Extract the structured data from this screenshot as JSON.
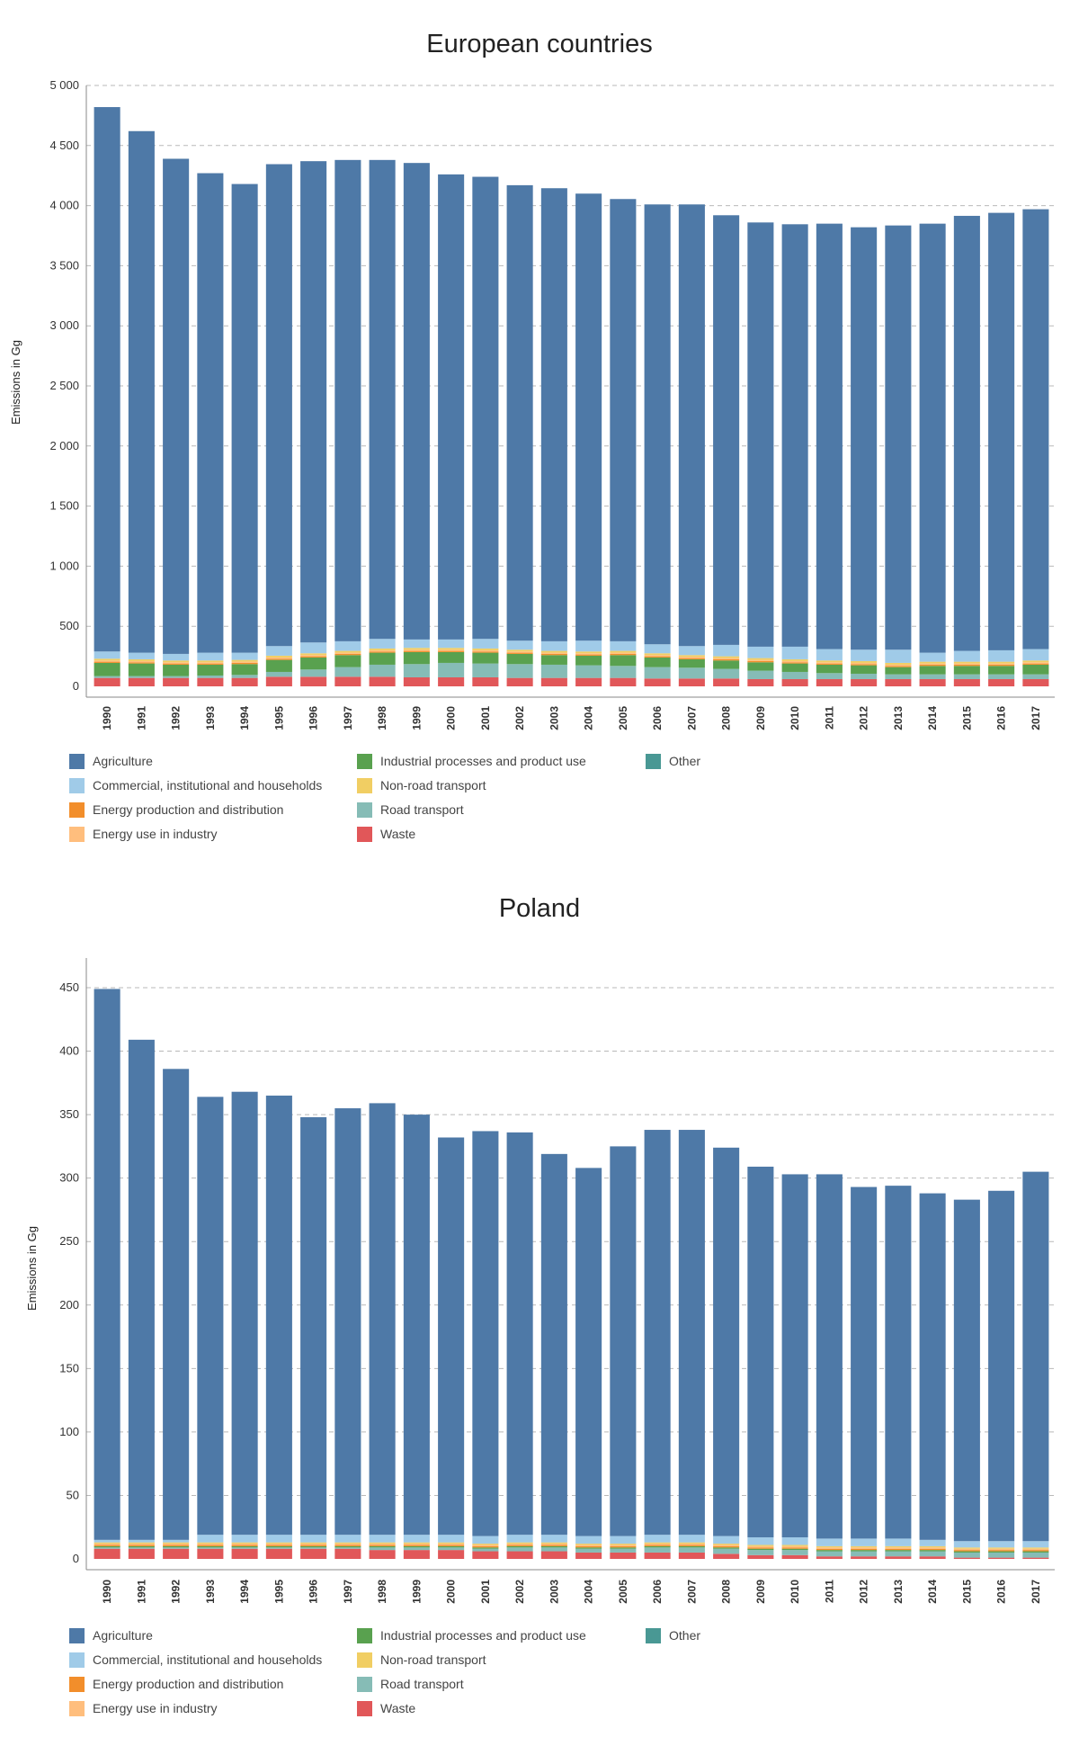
{
  "colors": {
    "Agriculture": "#4e79a7",
    "Commercial, institutional and households": "#a0cbe8",
    "Energy production and distribution": "#f28e2b",
    "Energy use in industry": "#ffbe7d",
    "Industrial processes and product use": "#59a14f",
    "Non-road transport": "#f1ce63",
    "Road transport": "#86bcb6",
    "Waste": "#e15759",
    "Other": "#499894"
  },
  "legend_items": [
    "Agriculture",
    "Commercial, institutional and households",
    "Energy production and distribution",
    "Energy use in industry",
    "Industrial processes and product use",
    "Non-road transport",
    "Road transport",
    "Waste",
    "Other"
  ],
  "chart_data": [
    {
      "type": "bar",
      "stacked": true,
      "title": "European countries",
      "ylabel": "Emissions in Gg",
      "xlabel": "",
      "ylim": [
        0,
        5000
      ],
      "yticks": [
        0,
        500,
        1000,
        1500,
        2000,
        2500,
        3000,
        3500,
        4000,
        4500,
        5000
      ],
      "ytick_labels": [
        "0",
        "500",
        "1 000",
        "1 500",
        "2 000",
        "2 500",
        "3 000",
        "3 500",
        "4 000",
        "4 500",
        "5 000"
      ],
      "grid": "horizontal dashed",
      "legend_position": "bottom",
      "categories": [
        "1990",
        "1991",
        "1992",
        "1993",
        "1994",
        "1995",
        "1996",
        "1997",
        "1998",
        "1999",
        "2000",
        "2001",
        "2002",
        "2003",
        "2004",
        "2005",
        "2006",
        "2007",
        "2008",
        "2009",
        "2010",
        "2011",
        "2012",
        "2013",
        "2014",
        "2015",
        "2016",
        "2017"
      ],
      "series": [
        {
          "name": "Waste",
          "values": [
            70,
            70,
            70,
            70,
            70,
            80,
            80,
            80,
            80,
            75,
            75,
            75,
            70,
            70,
            70,
            70,
            65,
            65,
            65,
            60,
            60,
            60,
            60,
            60,
            60,
            60,
            60,
            60
          ]
        },
        {
          "name": "Road transport",
          "values": [
            15,
            15,
            15,
            20,
            25,
            40,
            60,
            80,
            100,
            110,
            120,
            115,
            115,
            110,
            105,
            100,
            95,
            90,
            80,
            70,
            60,
            50,
            45,
            40,
            40,
            40,
            40,
            40
          ]
        },
        {
          "name": "Industrial processes and product use",
          "values": [
            110,
            105,
            95,
            90,
            90,
            100,
            100,
            100,
            100,
            100,
            90,
            90,
            85,
            80,
            80,
            90,
            80,
            70,
            70,
            70,
            70,
            70,
            70,
            60,
            70,
            70,
            70,
            80
          ]
        },
        {
          "name": "Energy production and distribution",
          "values": [
            10,
            10,
            10,
            10,
            10,
            10,
            10,
            10,
            10,
            10,
            10,
            10,
            10,
            10,
            10,
            10,
            10,
            10,
            10,
            10,
            10,
            10,
            10,
            10,
            10,
            10,
            10,
            10
          ]
        },
        {
          "name": "Energy use in industry",
          "values": [
            10,
            10,
            10,
            10,
            10,
            10,
            10,
            10,
            10,
            10,
            10,
            10,
            10,
            10,
            10,
            10,
            10,
            10,
            10,
            10,
            10,
            10,
            10,
            10,
            10,
            10,
            10,
            10
          ]
        },
        {
          "name": "Non-road transport",
          "values": [
            15,
            15,
            15,
            15,
            15,
            15,
            15,
            15,
            15,
            15,
            15,
            15,
            15,
            15,
            15,
            15,
            15,
            15,
            15,
            15,
            15,
            15,
            15,
            15,
            15,
            15,
            15,
            15
          ]
        },
        {
          "name": "Commercial, institutional and households",
          "values": [
            60,
            55,
            55,
            65,
            60,
            80,
            90,
            80,
            80,
            70,
            70,
            80,
            75,
            80,
            90,
            80,
            75,
            75,
            95,
            95,
            105,
            95,
            95,
            110,
            75,
            90,
            95,
            95
          ]
        },
        {
          "name": "Other",
          "values": [
            0,
            0,
            0,
            0,
            0,
            0,
            0,
            0,
            0,
            0,
            0,
            0,
            0,
            0,
            0,
            0,
            0,
            0,
            0,
            0,
            0,
            0,
            0,
            0,
            0,
            0,
            0,
            0
          ]
        },
        {
          "name": "Agriculture",
          "values": [
            4530,
            4340,
            4120,
            3990,
            3900,
            4010,
            4005,
            4005,
            3985,
            3965,
            3870,
            3845,
            3790,
            3770,
            3720,
            3680,
            3660,
            3675,
            3575,
            3530,
            3515,
            3540,
            3515,
            3530,
            3570,
            3620,
            3640,
            3660
          ]
        }
      ]
    },
    {
      "type": "bar",
      "stacked": true,
      "title": "Poland",
      "ylabel": "Emissions in Gg",
      "xlabel": "",
      "ylim": [
        0,
        450
      ],
      "yticks": [
        0,
        50,
        100,
        150,
        200,
        250,
        300,
        350,
        400,
        450
      ],
      "ytick_labels": [
        "0",
        "50",
        "100",
        "150",
        "200",
        "250",
        "300",
        "350",
        "400",
        "450"
      ],
      "grid": "horizontal dashed",
      "legend_position": "bottom",
      "categories": [
        "1990",
        "1991",
        "1992",
        "1993",
        "1994",
        "1995",
        "1996",
        "1997",
        "1998",
        "1999",
        "2000",
        "2001",
        "2002",
        "2003",
        "2004",
        "2005",
        "2006",
        "2007",
        "2008",
        "2009",
        "2010",
        "2011",
        "2012",
        "2013",
        "2014",
        "2015",
        "2016",
        "2017"
      ],
      "series": [
        {
          "name": "Waste",
          "values": [
            8,
            8,
            8,
            8,
            8,
            8,
            8,
            8,
            7,
            7,
            7,
            6,
            6,
            6,
            5,
            5,
            5,
            5,
            4,
            3,
            3,
            2,
            2,
            2,
            2,
            1,
            1,
            1
          ]
        },
        {
          "name": "Road transport",
          "values": [
            1,
            1,
            1,
            1,
            1,
            1,
            1,
            1,
            2,
            2,
            2,
            2,
            3,
            3,
            3,
            3,
            4,
            4,
            4,
            4,
            4,
            4,
            4,
            4,
            4,
            4,
            4,
            4
          ]
        },
        {
          "name": "Industrial processes and product use",
          "values": [
            1,
            1,
            1,
            1,
            1,
            1,
            1,
            1,
            1,
            1,
            1,
            1,
            1,
            1,
            1,
            1,
            1,
            1,
            1,
            1,
            1,
            1,
            1,
            1,
            1,
            1,
            1,
            1
          ]
        },
        {
          "name": "Energy production and distribution",
          "values": [
            1,
            1,
            1,
            1,
            1,
            1,
            1,
            1,
            1,
            1,
            1,
            1,
            1,
            1,
            1,
            1,
            1,
            1,
            1,
            1,
            1,
            1,
            1,
            1,
            1,
            1,
            1,
            1
          ]
        },
        {
          "name": "Energy use in industry",
          "values": [
            1,
            1,
            1,
            1,
            1,
            1,
            1,
            1,
            1,
            1,
            1,
            1,
            1,
            1,
            1,
            1,
            1,
            1,
            1,
            1,
            1,
            1,
            1,
            1,
            1,
            1,
            1,
            1
          ]
        },
        {
          "name": "Non-road transport",
          "values": [
            1,
            1,
            1,
            1,
            1,
            1,
            1,
            1,
            1,
            1,
            1,
            1,
            1,
            1,
            1,
            1,
            1,
            1,
            1,
            1,
            1,
            1,
            1,
            1,
            1,
            1,
            1,
            1
          ]
        },
        {
          "name": "Commercial, institutional and households",
          "values": [
            2,
            2,
            2,
            6,
            6,
            6,
            6,
            6,
            6,
            6,
            6,
            6,
            6,
            6,
            6,
            6,
            6,
            6,
            6,
            6,
            6,
            6,
            6,
            6,
            5,
            5,
            5,
            5
          ]
        },
        {
          "name": "Other",
          "values": [
            0,
            0,
            0,
            0,
            0,
            0,
            0,
            0,
            0,
            0,
            0,
            0,
            0,
            0,
            0,
            0,
            0,
            0,
            0,
            0,
            0,
            0,
            0,
            0,
            0,
            0,
            0,
            0
          ]
        },
        {
          "name": "Agriculture",
          "values": [
            434,
            394,
            371,
            345,
            349,
            346,
            329,
            336,
            340,
            331,
            313,
            319,
            317,
            300,
            290,
            307,
            319,
            319,
            306,
            292,
            286,
            287,
            277,
            278,
            273,
            269,
            276,
            291
          ]
        }
      ]
    }
  ]
}
